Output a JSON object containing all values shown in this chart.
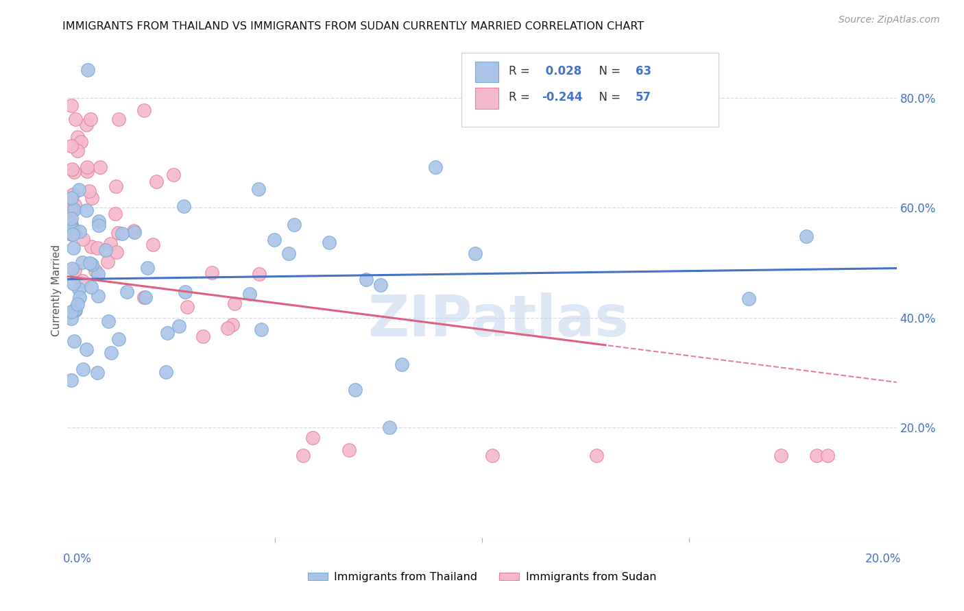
{
  "title": "IMMIGRANTS FROM THAILAND VS IMMIGRANTS FROM SUDAN CURRENTLY MARRIED CORRELATION CHART",
  "source": "Source: ZipAtlas.com",
  "ylabel": "Currently Married",
  "thailand_color": "#aac4e8",
  "thailand_edge": "#7aaad4",
  "sudan_color": "#f4b8cc",
  "sudan_edge": "#e8809c",
  "trend_thailand_color": "#4472c4",
  "trend_sudan_color": "#e06080",
  "background": "#ffffff",
  "grid_color": "#d8d8e8",
  "title_color": "#222222",
  "axis_label_color": "#4472c4",
  "right_ytick_labels": [
    "80.0%",
    "60.0%",
    "40.0%",
    "20.0%"
  ],
  "right_ytick_vals": [
    0.8,
    0.6,
    0.4,
    0.2
  ],
  "xlim": [
    0.0,
    0.2
  ],
  "ylim": [
    0.0,
    0.9
  ],
  "legend_R1": "0.028",
  "legend_N1": "63",
  "legend_R2": "-0.244",
  "legend_N2": "57",
  "watermark": "ZIPatlas",
  "watermark_color": "#c8d8f0",
  "th_seed": 42,
  "su_seed": 99
}
